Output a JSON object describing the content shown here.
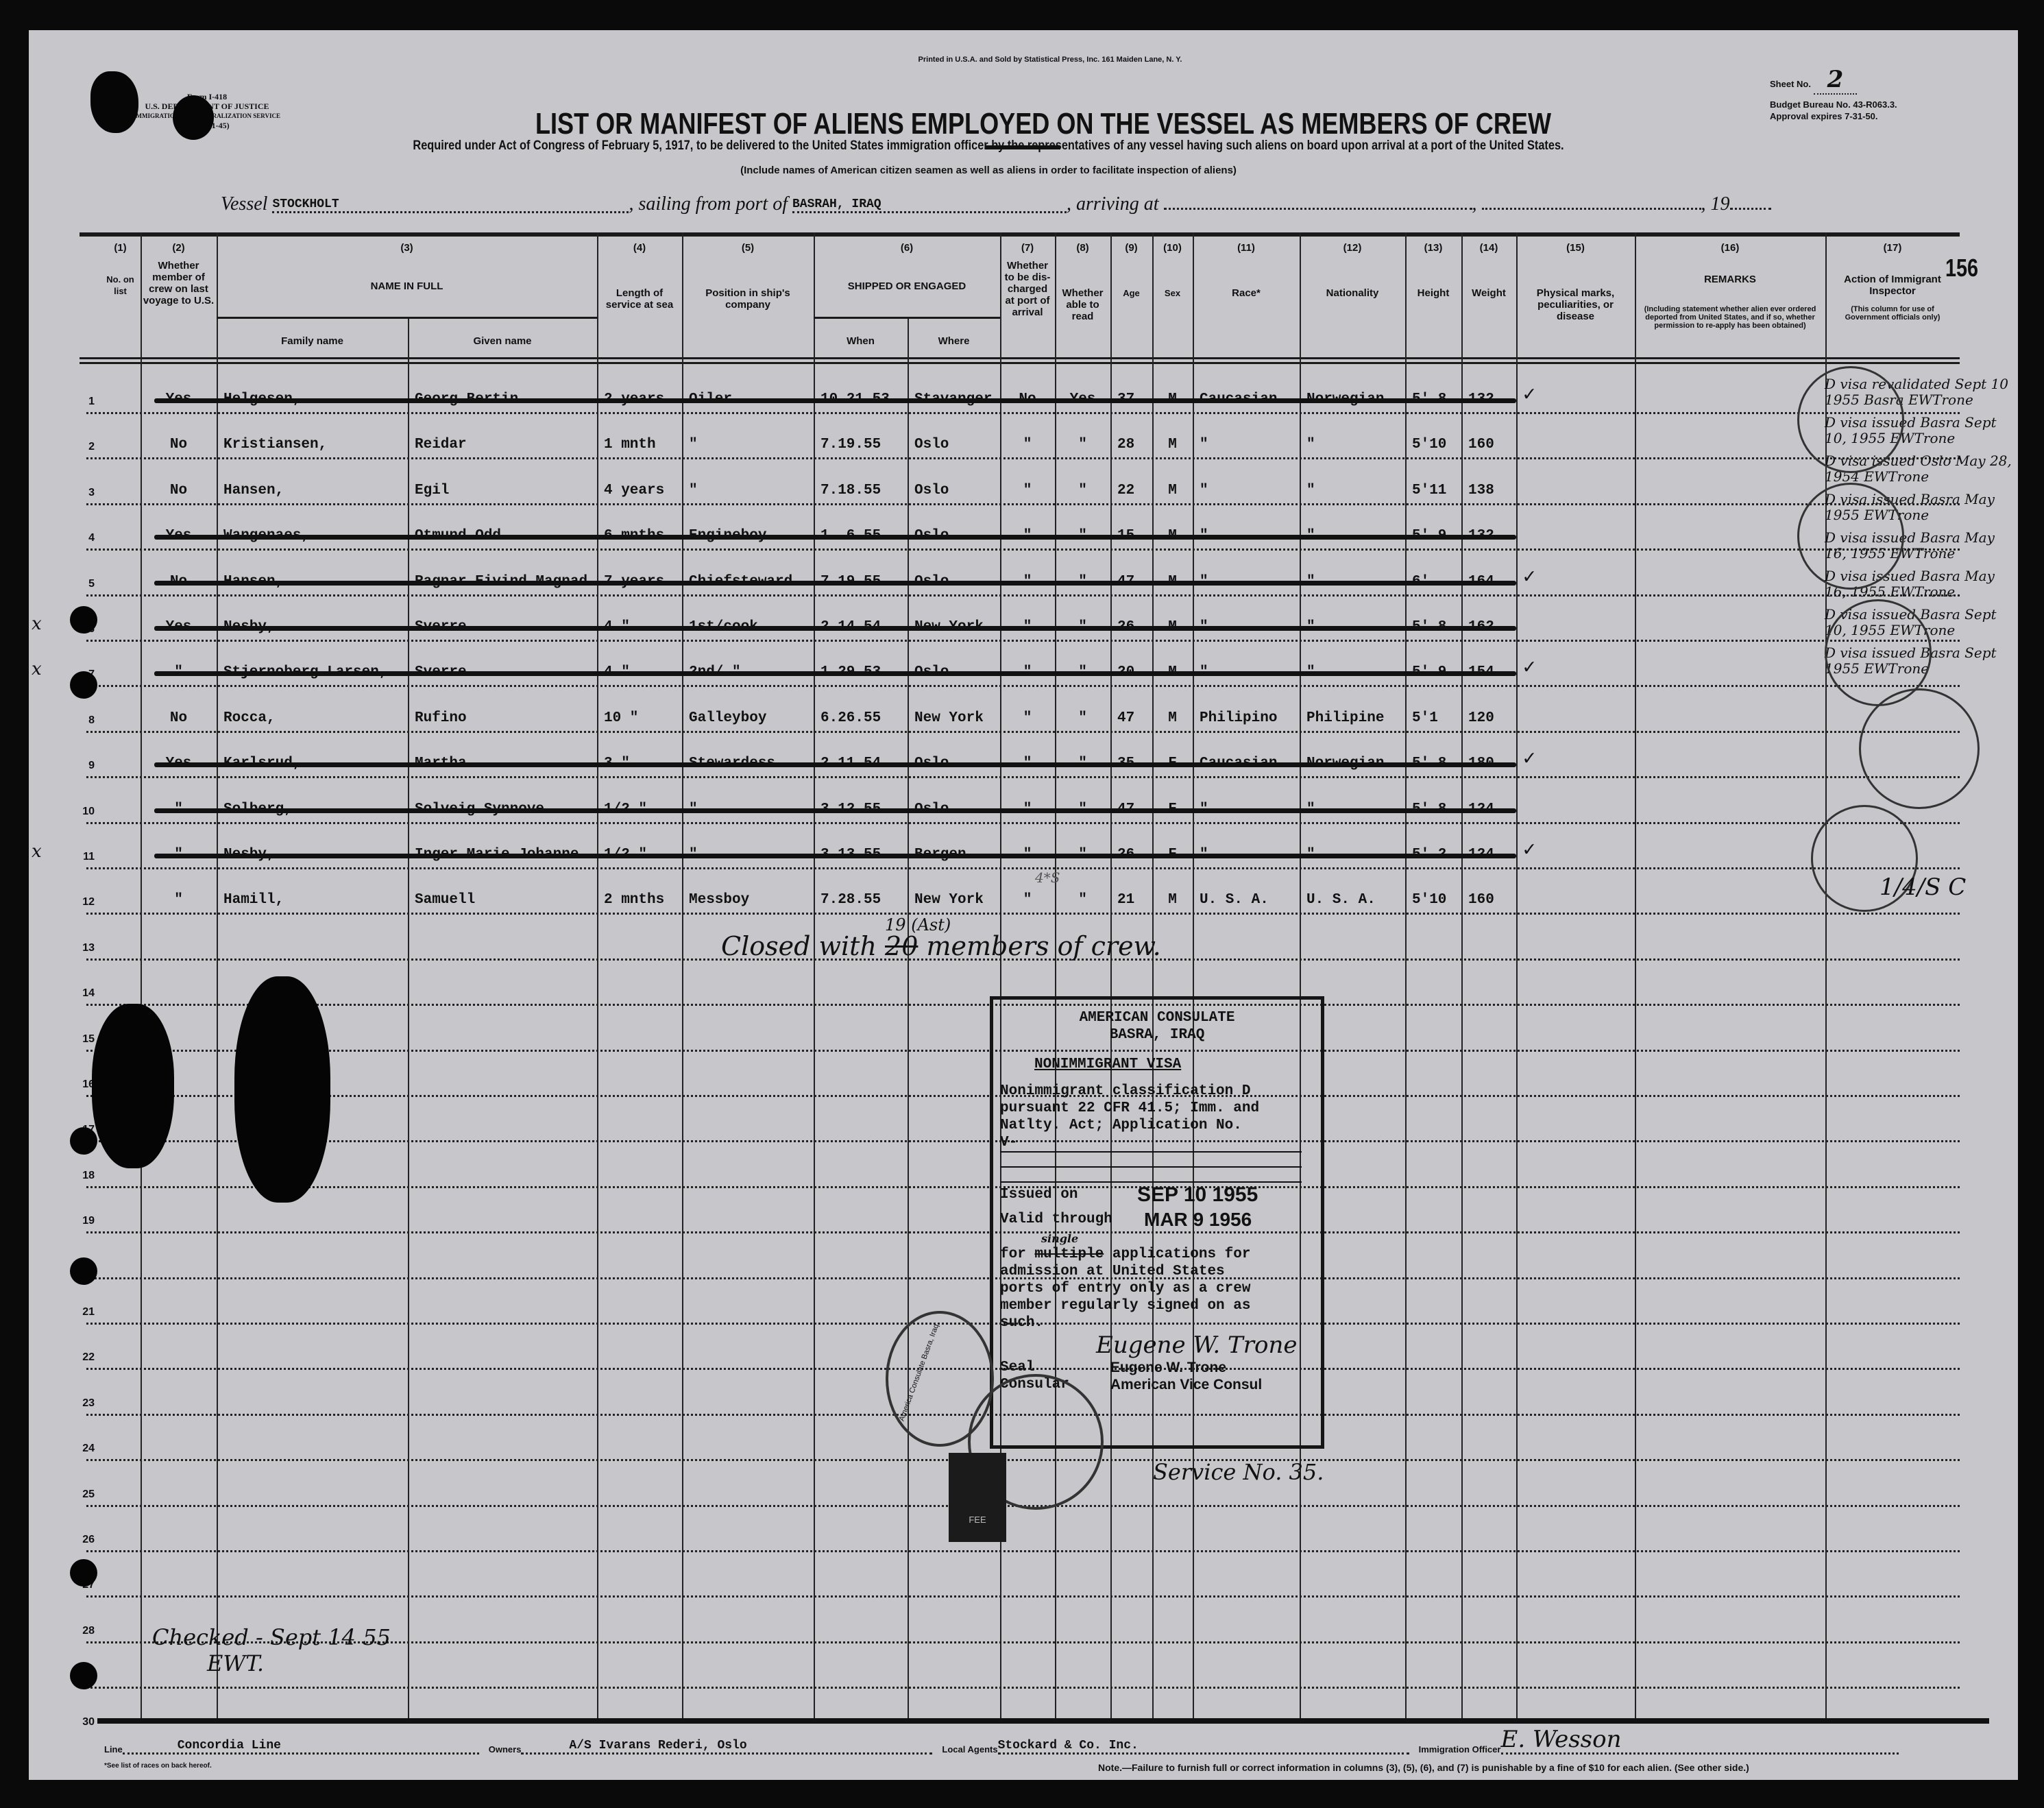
{
  "form": {
    "form_no": "Form I-418",
    "department": "U.S. DEPARTMENT OF JUSTICE",
    "service": "IMMIGRATION AND NATURALIZATION SERVICE",
    "revision": "(Rev. 4-1-45)",
    "printer": "Printed in U.S.A. and Sold by Statistical Press, Inc. 161 Maiden Lane, N. Y.",
    "title": "LIST OR MANIFEST OF ALIENS EMPLOYED ON THE VESSEL AS MEMBERS OF CREW",
    "required": "Required under Act of Congress of February 5, 1917, to be delivered to the United States immigration officer by the representatives of any vessel having such aliens on board upon arrival at a port of the United States.",
    "include": "(Include names of American citizen seamen as well as aliens in order to facilitate inspection of aliens)",
    "sheet_label": "Sheet No.",
    "sheet_no": "2",
    "budget": "Budget Bureau No. 43-R063.3.",
    "approval": "Approval expires 7-31-50.",
    "page_number": "156"
  },
  "vessel": {
    "vessel_label": "Vessel",
    "vessel": "STOCKHOLT",
    "sailing_label": ", sailing from port of",
    "port": "BASRAH, IRAQ",
    "arriving_label": ", arriving at",
    "arriving": "",
    "year_label": "19"
  },
  "columns": [
    {
      "num": "(1)",
      "label": "No. on list"
    },
    {
      "num": "(2)",
      "label": "Whether member of crew on last voyage to U.S."
    },
    {
      "num": "(3)",
      "label": "NAME IN FULL",
      "sub": [
        "Family name",
        "Given name"
      ]
    },
    {
      "num": "(4)",
      "label": "Length of service at sea"
    },
    {
      "num": "(5)",
      "label": "Position in ship's company"
    },
    {
      "num": "(6)",
      "label": "SHIPPED OR ENGAGED",
      "sub": [
        "When",
        "Where"
      ]
    },
    {
      "num": "(7)",
      "label": "Whether to be dis-charged at port of arrival"
    },
    {
      "num": "(8)",
      "label": "Whether able to read"
    },
    {
      "num": "(9)",
      "label": "Age"
    },
    {
      "num": "(10)",
      "label": "Sex"
    },
    {
      "num": "(11)",
      "label": "Race*"
    },
    {
      "num": "(12)",
      "label": "Nationality"
    },
    {
      "num": "(13)",
      "label": "Height"
    },
    {
      "num": "(14)",
      "label": "Weight"
    },
    {
      "num": "(15)",
      "label": "Physical marks, peculiarities, or disease"
    },
    {
      "num": "(16)",
      "label": "REMARKS",
      "note": "(Including statement whether alien ever ordered deported from United States, and if so, whether permission to re-apply has been obtained)"
    },
    {
      "num": "(17)",
      "label": "Action of Immigrant Inspector",
      "note": "(This column for use of Government officials only)"
    }
  ],
  "rows": [
    {
      "no": "1",
      "prev": "Yes",
      "family": "Helgesen,",
      "given": "Georg Bertin",
      "length": "2 years",
      "position": "Oiler",
      "when": "10.21.53",
      "where": "Stavanger",
      "discharged": "No",
      "read": "Yes",
      "age": "37",
      "sex": "M",
      "race": "Caucasian",
      "nationality": "Norwegian",
      "height": "5' 8",
      "weight": "132",
      "marks": "✓",
      "struck": true
    },
    {
      "no": "2",
      "prev": "No",
      "family": "Kristiansen,",
      "given": "Reidar",
      "length": "1 mnth",
      "position": "\"",
      "when": "7.19.55",
      "where": "Oslo",
      "discharged": "\"",
      "read": "\"",
      "age": "28",
      "sex": "M",
      "race": "\"",
      "nationality": "\"",
      "height": "5'10",
      "weight": "160",
      "marks": "",
      "struck": false
    },
    {
      "no": "3",
      "prev": "No",
      "family": "Hansen,",
      "given": "Egil",
      "length": "4 years",
      "position": "\"",
      "when": "7.18.55",
      "where": "Oslo",
      "discharged": "\"",
      "read": "\"",
      "age": "22",
      "sex": "M",
      "race": "\"",
      "nationality": "\"",
      "height": "5'11",
      "weight": "138",
      "marks": "",
      "struck": false
    },
    {
      "no": "4",
      "prev": "Yes",
      "family": "Wangenaes,",
      "given": "Otmund Odd",
      "length": "6 mnths",
      "position": "Engineboy",
      "when": "1. 6.55",
      "where": "Oslo",
      "discharged": "\"",
      "read": "\"",
      "age": "15",
      "sex": "M",
      "race": "\"",
      "nationality": "\"",
      "height": "5' 9",
      "weight": "132",
      "marks": "",
      "struck": true
    },
    {
      "no": "5",
      "prev": "No",
      "family": "Hansen,",
      "given": "Ragnar Eivind Magnad",
      "length": "7 years",
      "position": "Chiefsteward",
      "when": "7.19.55",
      "where": "Oslo",
      "discharged": "\"",
      "read": "\"",
      "age": "47",
      "sex": "M",
      "race": "\"",
      "nationality": "\"",
      "height": "6'",
      "weight": "164",
      "marks": "✓",
      "struck": true
    },
    {
      "no": "6",
      "prev": "Yes",
      "family": "Nesby,",
      "given": "Sverre",
      "length": "4 \"",
      "position": "1st/cook",
      "when": "2.14.54",
      "where": "New York",
      "discharged": "\"",
      "read": "\"",
      "age": "26",
      "sex": "M",
      "race": "\"",
      "nationality": "\"",
      "height": "5' 8",
      "weight": "162",
      "marks": "",
      "struck": true,
      "margin": "x"
    },
    {
      "no": "7",
      "prev": "\"",
      "family": "Stjernoberg Larsen,",
      "given": "Sverre",
      "length": "4 \"",
      "position": "2nd/ \"",
      "when": "1.29.53",
      "where": "Oslo",
      "discharged": "\"",
      "read": "\"",
      "age": "20",
      "sex": "M",
      "race": "\"",
      "nationality": "\"",
      "height": "5' 9",
      "weight": "154",
      "marks": "✓",
      "struck": true,
      "margin": "x"
    },
    {
      "no": "8",
      "prev": "No",
      "family": "Rocca,",
      "given": "Rufino",
      "length": "10 \"",
      "position": "Galleyboy",
      "when": "6.26.55",
      "where": "New York",
      "discharged": "\"",
      "read": "\"",
      "age": "47",
      "sex": "M",
      "race": "Philipino",
      "nationality": "Philipine",
      "height": "5'1",
      "weight": "120",
      "marks": "",
      "struck": false
    },
    {
      "no": "9",
      "prev": "Yes",
      "family": "Karlsrud,",
      "given": "Martha",
      "length": "3 \"",
      "position": "Stewardess",
      "when": "2.11.54",
      "where": "Oslo",
      "discharged": "\"",
      "read": "\"",
      "age": "35",
      "sex": "F",
      "race": "Caucasian",
      "nationality": "Norwegian",
      "height": "5' 8",
      "weight": "180",
      "marks": "✓",
      "struck": true
    },
    {
      "no": "10",
      "prev": "\"",
      "family": "Solberg,",
      "given": "Solveig Synnove",
      "length": "1/2 \"",
      "position": "\"",
      "when": "3.12.55",
      "where": "Oslo",
      "discharged": "\"",
      "read": "\"",
      "age": "47",
      "sex": "F",
      "race": "\"",
      "nationality": "\"",
      "height": "5' 8",
      "weight": "124",
      "marks": "",
      "struck": true
    },
    {
      "no": "11",
      "prev": "\"",
      "family": "Nesby,",
      "given": "Inger Marie Johanne",
      "length": "1/2 \"",
      "position": "\"",
      "when": "3.13.55",
      "where": "Bergen",
      "discharged": "\"",
      "read": "\"",
      "age": "26",
      "sex": "F",
      "race": "\"",
      "nationality": "\"",
      "height": "5' 2",
      "weight": "124",
      "marks": "✓",
      "struck": true,
      "margin": "x"
    },
    {
      "no": "12",
      "prev": "\"",
      "family": "Hamill,",
      "given": "Samuell",
      "length": "2 mnths",
      "position": "Messboy",
      "when": "7.28.55",
      "where": "New York",
      "discharged": "\"",
      "read": "\"",
      "age": "21",
      "sex": "M",
      "race": "U. S. A.",
      "nationality": "U. S. A.",
      "height": "5'10",
      "weight": "160",
      "marks": "",
      "struck": false
    }
  ],
  "blank_row_numbers": [
    "13",
    "14",
    "15",
    "16",
    "17",
    "18",
    "19",
    "20",
    "21",
    "22",
    "23",
    "24",
    "25",
    "26",
    "27",
    "28",
    "29",
    "30"
  ],
  "annotations": {
    "row12_note": "4*S",
    "closed_prefix": "Closed with",
    "closed_struck": "20",
    "closed_correction": "19 (Ast)",
    "closed_suffix": "members of crew.",
    "service": "Service No. 35.",
    "checked": "Checked - Sept 14 55",
    "checked_initials": "EWT.",
    "inspector_notes": [
      "D visa revalidated Sept 10 1955 Basra EWTrone",
      "D visa issued Basra Sept 10, 1955 EWTrone",
      "D visa issued Oslo May 28, 1954 EWTrone",
      "D visa issued Basra May 1955 EWTrone",
      "D visa issued Basra May 16, 1955 EWTrone",
      "D visa issued Basra May 16, 1955 EWTrone",
      "D visa issued Basra Sept 10, 1955 EWTrone",
      "D visa issued Basra Sept 1955 EWTrone"
    ],
    "inspector_initials": "1/4/S C"
  },
  "visa_stamp": {
    "line1": "AMERICAN CONSULATE",
    "line2": "BASRA, IRAQ",
    "heading": "NONIMMIGRANT VISA",
    "body1": "Nonimmigrant classification D",
    "body2": "pursuant 22 CFR 41.5; Imm. and",
    "body3": "Natlty. Act; Application No.",
    "app_prefix": "V-",
    "issued_label": "Issued on",
    "issued_date": "SEP 10 1955",
    "valid_label": "Valid through",
    "valid_date": "MAR 9 1956",
    "for_label": "for",
    "struck_word": "multiple",
    "replacement_word": "single",
    "body4": "applications for",
    "body5": "admission at United States",
    "body6": "ports of entry only as a crew",
    "body7": "member regularly signed on as",
    "body8": "such.",
    "seal_label": "Seal",
    "seal_label2": "Consular",
    "signature": "Eugene W. Trone",
    "signer": "Eugene W. Trone",
    "signer_title": "American Vice Consul",
    "seal_text": "America Consulate Basra, Iraq",
    "fee_stamp": "FEE"
  },
  "footer": {
    "line_label": "Line",
    "line": "Concordia Line",
    "owners_label": "Owners",
    "owners": "A/S Ivarans Rederi, Oslo",
    "agents_label": "Local Agents",
    "agents": "Stockard & Co. Inc.",
    "officer_label": "Immigration Officer",
    "officer_signature": "E. Wesson",
    "races_note": "*See list of races on back hereof.",
    "note": "Note.—Failure to furnish full or correct information in columns (3), (5), (6), and (7) is punishable by a fine of $10 for each alien. (See other side.)"
  },
  "colors": {
    "paper": "#c6c6cb",
    "ink": "#111111",
    "border": "#0a0a0a"
  }
}
